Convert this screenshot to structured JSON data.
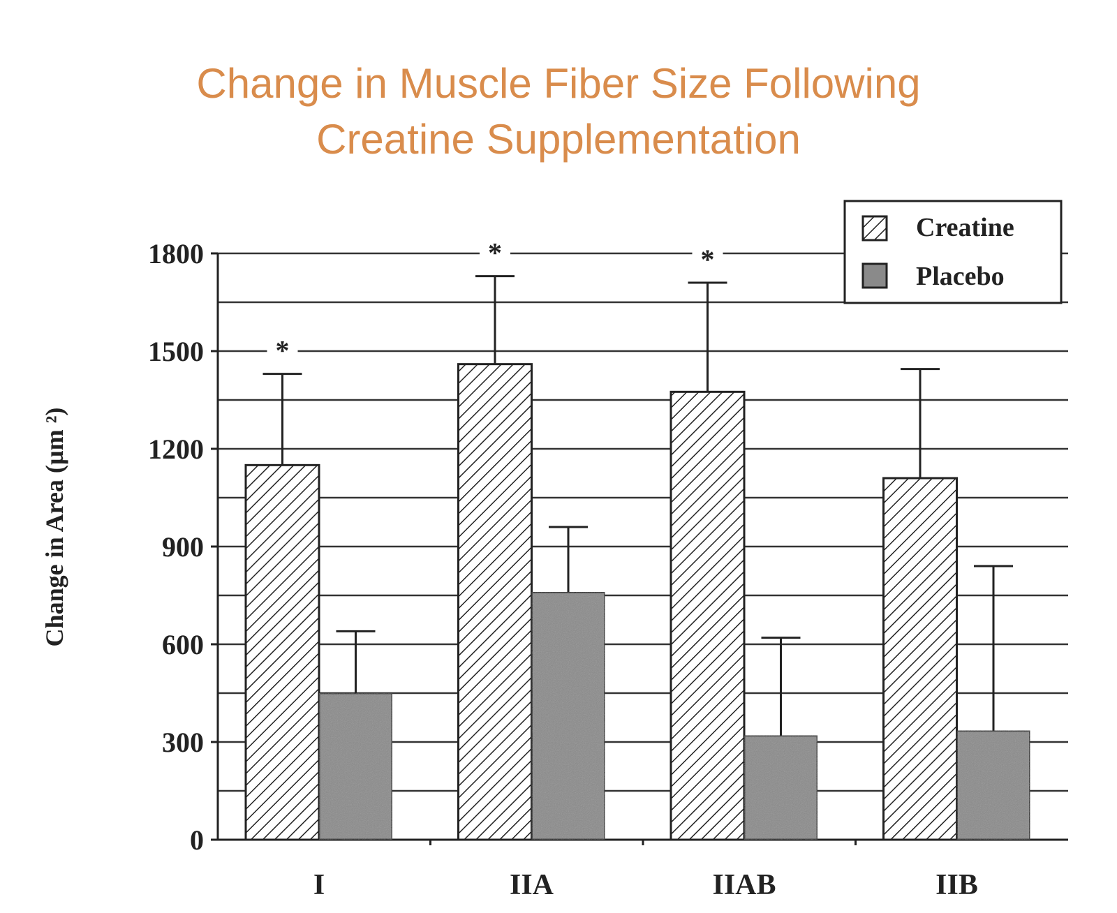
{
  "chart_data": {
    "type": "bar",
    "title": "Change in Muscle Fiber Size Following Creatine Supplementation",
    "title_lines": [
      "Change in Muscle Fiber Size Following",
      "Creatine Supplementation"
    ],
    "title_color": "#d98c4c",
    "xlabel": "",
    "ylabel": "Change in Area (µm ²)",
    "ylim": [
      0,
      1800
    ],
    "yticks": [
      0,
      300,
      600,
      900,
      1200,
      1500,
      1800
    ],
    "grid": true,
    "grid_step": 150,
    "legend_position": "top-right",
    "categories": [
      "I",
      "IIA",
      "IIAB",
      "IIB"
    ],
    "series": [
      {
        "name": "Creatine",
        "values": [
          1150,
          1460,
          1375,
          1110
        ],
        "error_upper": [
          1430,
          1730,
          1710,
          1445
        ],
        "pattern": "diagonal-hatch",
        "color": "#ffffff"
      },
      {
        "name": "Placebo",
        "values": [
          450,
          760,
          320,
          335
        ],
        "error_upper": [
          640,
          960,
          620,
          840
        ],
        "pattern": "solid-gray",
        "color": "#8a8a8a"
      }
    ],
    "significance_marker": "*",
    "significant_categories": [
      "I",
      "IIA",
      "IIAB"
    ]
  }
}
